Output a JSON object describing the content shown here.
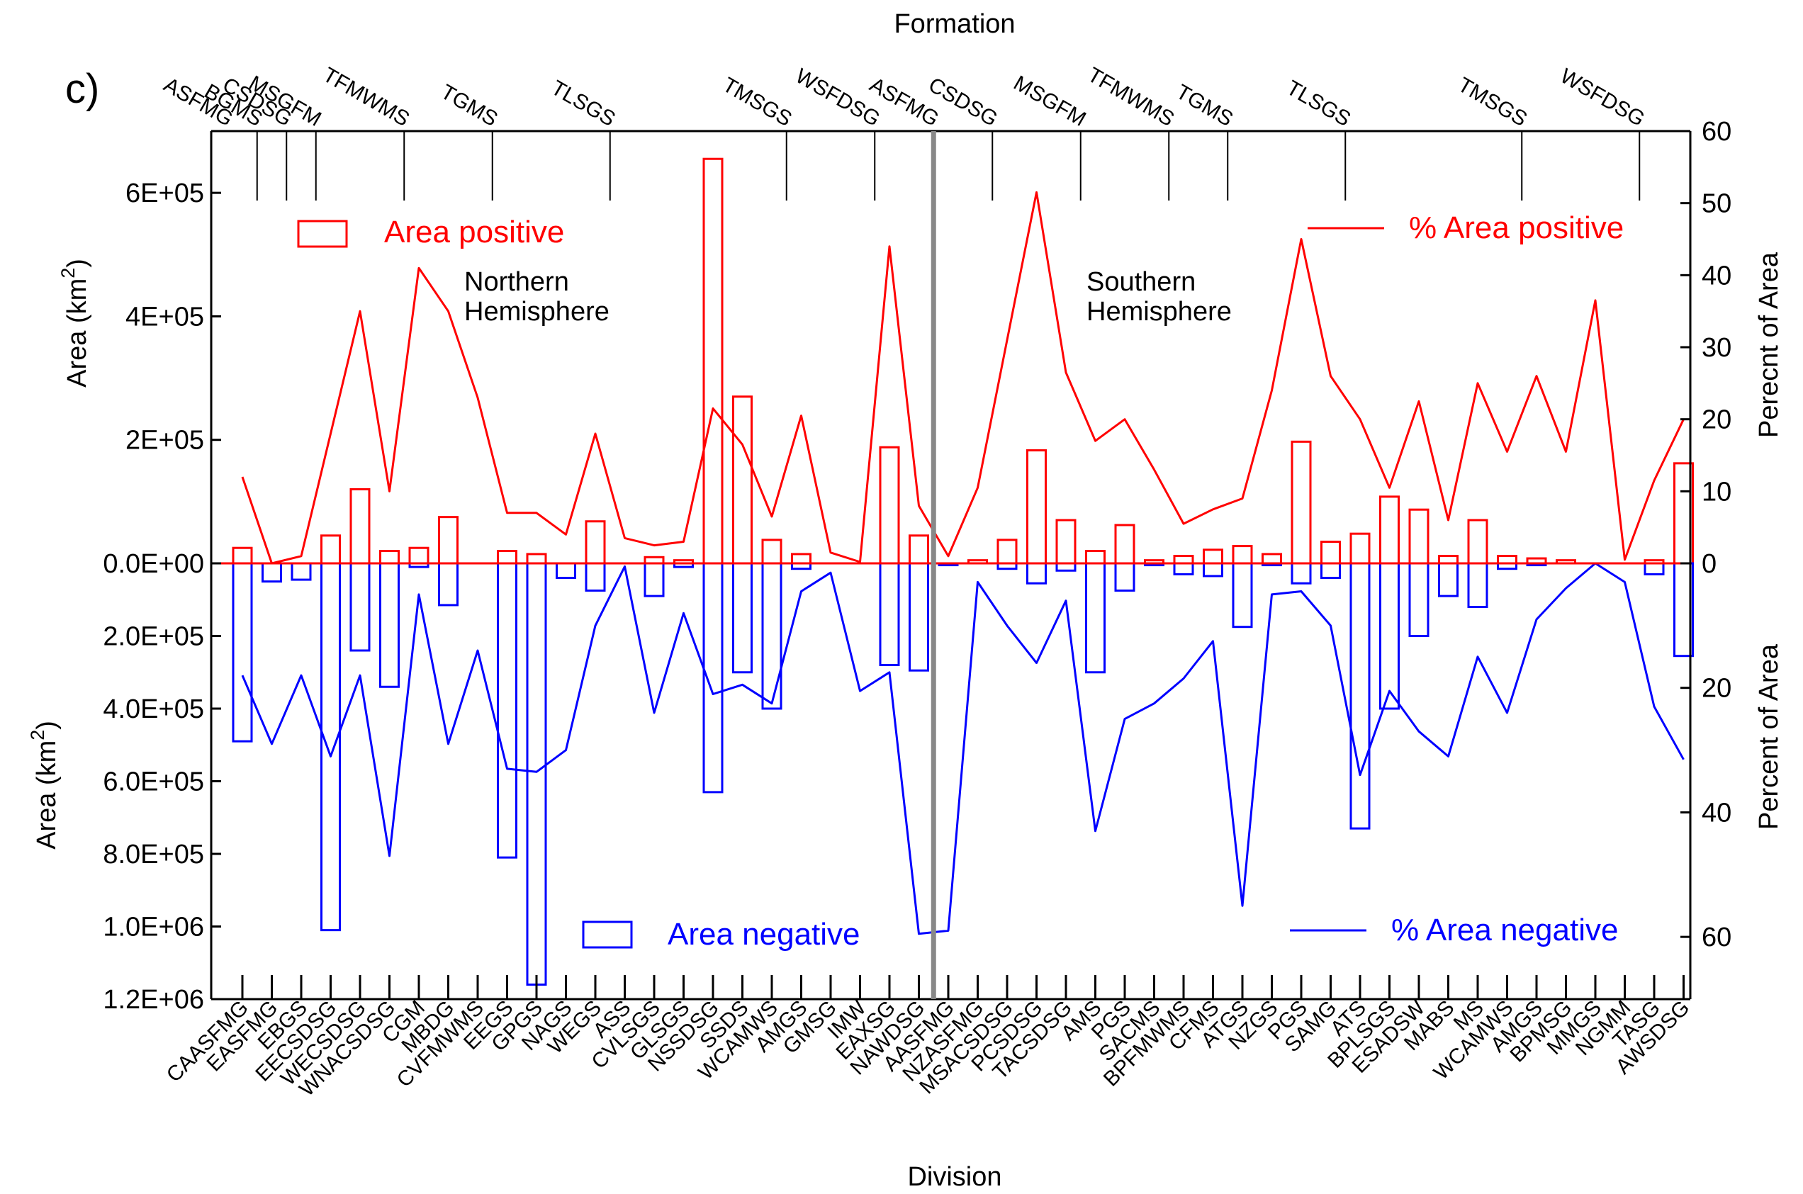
{
  "panel_label": "c)",
  "colors": {
    "positive": "#ff0000",
    "negative": "#0000ff",
    "axis": "#000000",
    "divider": "#888888"
  },
  "chart_data": {
    "type": "bar",
    "title": "",
    "xlabel": "Division",
    "top_label": "Formation",
    "categories": [
      "CAASFMG",
      "EASFMG",
      "EBGS",
      "EECSDSG",
      "WECSDSG",
      "WNACSDSG",
      "CGM",
      "MBDG",
      "CVFMWMS",
      "EEGS",
      "GPGS",
      "NAGS",
      "WEGS",
      "ASS",
      "CVLSGS",
      "GLSGS",
      "NSSDSG",
      "SSDS",
      "WCAMWS",
      "AMGS",
      "GMSG",
      "IMW",
      "EAXSG",
      "NAWDSG",
      "AASFMG",
      "NZASFMG",
      "MSACSDSG",
      "PCSDSG",
      "TACSDSG",
      "AMS",
      "PGS",
      "SACMS",
      "BPFMWMS",
      "CFMS",
      "ATGS",
      "NZGS",
      "PGS",
      "SAMG",
      "ATS",
      "BPLSGS",
      "ESADSW",
      "MABS",
      "MS",
      "WCAMWS",
      "AMGS",
      "BPMSG",
      "MMGS",
      "NGMM",
      "TASG",
      "AWSDSG"
    ],
    "formations": [
      {
        "label": "ASFMG",
        "index": 0
      },
      {
        "label": "BGMS",
        "index": 1
      },
      {
        "label": "CSDSG",
        "index": 2
      },
      {
        "label": "MSGFM",
        "index": 3
      },
      {
        "label": "TFMWMS",
        "index": 6
      },
      {
        "label": "TGMS",
        "index": 9
      },
      {
        "label": "TLSGS",
        "index": 13
      },
      {
        "label": "TMSGS",
        "index": 19
      },
      {
        "label": "WSFDSG",
        "index": 22
      },
      {
        "label": "ASFMG",
        "index": 24
      },
      {
        "label": "CSDSG",
        "index": 26
      },
      {
        "label": "MSGFM",
        "index": 29
      },
      {
        "label": "TFMWMS",
        "index": 32
      },
      {
        "label": "TGMS",
        "index": 34
      },
      {
        "label": "TLSGS",
        "index": 38
      },
      {
        "label": "TMSGS",
        "index": 44
      },
      {
        "label": "WSFDSG",
        "index": 48
      }
    ],
    "hemisphere_divider_after_index": 23,
    "hemispheres": [
      {
        "label_line1": "Northern",
        "label_line2": "Hemisphere"
      },
      {
        "label_line1": "Southern",
        "label_line2": "Hemisphere"
      }
    ],
    "series": [
      {
        "name": "Area positive",
        "kind": "bar",
        "axis": "left-top",
        "values": [
          25000,
          0,
          0,
          45000,
          120000,
          20000,
          25000,
          75000,
          0,
          20000,
          15000,
          0,
          68000,
          0,
          10000,
          5000,
          655000,
          270000,
          38000,
          15000,
          0,
          0,
          188000,
          45000,
          0,
          5000,
          38000,
          183000,
          70000,
          20000,
          62000,
          5000,
          12000,
          22000,
          28000,
          15000,
          197000,
          35000,
          48000,
          108000,
          87000,
          12000,
          70000,
          12000,
          8000,
          5000,
          0,
          0,
          5000,
          162000
        ]
      },
      {
        "name": "Area negative",
        "kind": "bar",
        "axis": "left-bottom",
        "values": [
          490000,
          50000,
          45000,
          1010000,
          240000,
          340000,
          10000,
          115000,
          0,
          810000,
          1160000,
          40000,
          75000,
          0,
          90000,
          10000,
          630000,
          300000,
          400000,
          15000,
          0,
          0,
          280000,
          295000,
          5000,
          0,
          15000,
          55000,
          20000,
          300000,
          75000,
          5000,
          30000,
          35000,
          175000,
          5000,
          55000,
          40000,
          730000,
          400000,
          200000,
          90000,
          120000,
          15000,
          5000,
          0,
          0,
          0,
          30000,
          255000
        ]
      },
      {
        "name": "% Area positive",
        "kind": "line",
        "axis": "right-top",
        "values": [
          12,
          0,
          1,
          18,
          35,
          10,
          41,
          35,
          23,
          7,
          7,
          4,
          18,
          3.5,
          2.5,
          3,
          21.5,
          16.5,
          6.5,
          20.5,
          1.5,
          0.2,
          44,
          8,
          1,
          10.5,
          31,
          51.5,
          26.5,
          17,
          20,
          13,
          5.5,
          7.5,
          9,
          24,
          45,
          26,
          20,
          10.5,
          22.5,
          6,
          25,
          15.5,
          26,
          15.5,
          36.5,
          0.5,
          11.5,
          20
        ]
      },
      {
        "name": "% Area negative",
        "kind": "line",
        "axis": "right-bottom",
        "values": [
          18,
          29,
          18,
          31,
          18,
          47,
          5,
          29,
          14,
          33,
          33.5,
          30,
          10,
          0.5,
          24,
          8,
          21,
          19.5,
          22.5,
          4.5,
          1.5,
          20.5,
          17.5,
          59.5,
          59,
          3,
          10,
          16,
          6,
          43,
          25,
          22.5,
          18.5,
          12.5,
          55,
          5,
          4.5,
          10,
          34,
          20.5,
          27,
          31,
          15,
          24,
          9,
          4,
          0,
          3,
          23,
          31.5
        ]
      }
    ],
    "left_axis_top": {
      "label": "Area (km",
      "sup": "2",
      "label_tail": ")",
      "range": [
        0,
        700000
      ],
      "ticks": [
        0,
        200000,
        400000,
        600000
      ],
      "tick_labels": [
        "0.0E+00",
        "2E+05",
        "4E+05",
        "6E+05"
      ]
    },
    "left_axis_bottom": {
      "label": "Area (km",
      "sup": "2",
      "label_tail": ")",
      "range": [
        0,
        1200000
      ],
      "ticks": [
        200000,
        400000,
        600000,
        800000,
        1000000,
        1200000
      ],
      "tick_labels": [
        "2.0E+05",
        "4.0E+05",
        "6.0E+05",
        "8.0E+05",
        "1.0E+06",
        "1.2E+06"
      ]
    },
    "right_axis_top": {
      "label": "Perecnt of Area",
      "range": [
        0,
        60
      ],
      "ticks": [
        0,
        10,
        20,
        30,
        40,
        50,
        60
      ],
      "tick_labels": [
        "0",
        "10",
        "20",
        "30",
        "40",
        "50",
        "60"
      ]
    },
    "right_axis_bottom": {
      "label": "Percent of Area",
      "range": [
        0,
        70
      ],
      "ticks": [
        20,
        40,
        60
      ],
      "tick_labels": [
        "20",
        "40",
        "60"
      ]
    },
    "legend": {
      "area_positive": "Area positive",
      "pct_area_positive": "% Area positive",
      "area_negative": "Area negative",
      "pct_area_negative": "% Area negative"
    }
  }
}
